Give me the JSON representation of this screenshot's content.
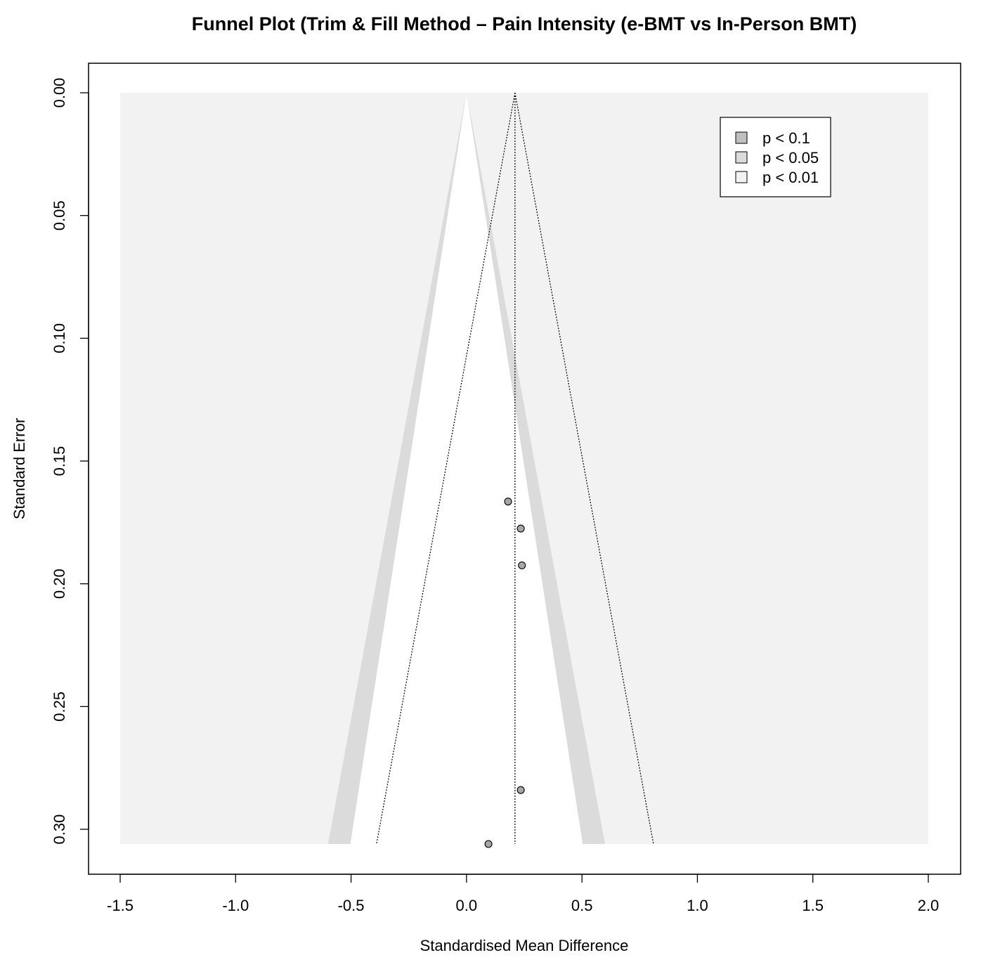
{
  "chart_data": {
    "type": "scatter",
    "title": "Funnel Plot (Trim & Fill Method – Pain Intensity (e-BMT vs In-Person BMT)",
    "xlabel": "Standardised Mean Difference",
    "ylabel": "Standard Error",
    "xlim": [
      -1.5,
      2.0
    ],
    "ylim": [
      0.306,
      0.0
    ],
    "y_reversed": true,
    "x_ticks": [
      -1.5,
      -1.0,
      -0.5,
      0.0,
      0.5,
      1.0,
      1.5,
      2.0
    ],
    "x_tick_labels": [
      "-1.5",
      "-1.0",
      "-0.5",
      "0.0",
      "0.5",
      "1.0",
      "1.5",
      "2.0"
    ],
    "y_ticks": [
      0.0,
      0.05,
      0.1,
      0.15,
      0.2,
      0.25,
      0.3
    ],
    "y_tick_labels": [
      "0.00",
      "0.05",
      "0.10",
      "0.15",
      "0.20",
      "0.25",
      "0.30"
    ],
    "contour_center": 0.0,
    "contours": [
      {
        "label": "p < 0.1",
        "z": 1.645,
        "color": "#bfbfbf"
      },
      {
        "label": "p < 0.05",
        "z": 1.96,
        "color": "#dbdbdb"
      },
      {
        "label": "p < 0.01",
        "z": 2.576,
        "color": "#f2f2f2"
      }
    ],
    "pooled_estimate": 0.21,
    "points": [
      {
        "x": 0.18,
        "y": 0.1665
      },
      {
        "x": 0.235,
        "y": 0.1775
      },
      {
        "x": 0.24,
        "y": 0.1925
      },
      {
        "x": 0.235,
        "y": 0.284
      },
      {
        "x": 0.095,
        "y": 0.306
      }
    ],
    "legend": {
      "position": "top-right",
      "entries": [
        {
          "label": "p < 0.1",
          "color": "#bfbfbf"
        },
        {
          "label": "p < 0.05",
          "color": "#dbdbdb"
        },
        {
          "label": "p < 0.01",
          "color": "#f2f2f2"
        }
      ]
    },
    "grid": false,
    "colors": {
      "point_fill": "#a6a6a6",
      "outside": "#f2f2f2",
      "inner": "#ffffff"
    }
  }
}
